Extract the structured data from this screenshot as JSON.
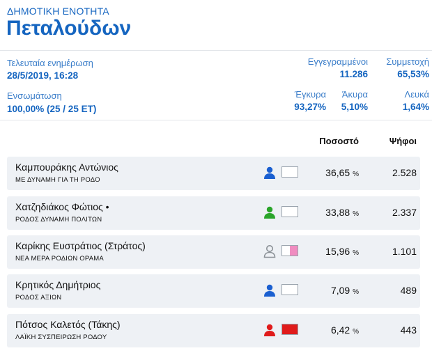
{
  "header": {
    "supertitle": "ΔΗΜΟΤΙΚΗ ΕΝΟΤΗΤΑ",
    "title": "Πεταλούδων"
  },
  "info": {
    "last_update_label": "Τελευταία ενημέρωση",
    "last_update_value": "28/5/2019, 16:28",
    "integration_label": "Ενσωμάτωση",
    "integration_value": "100,00% (25 / 25 ΕΤ)",
    "registered_label": "Εγγεγραμμένοι",
    "registered_value": "11.286",
    "turnout_label": "Συμμετοχή",
    "turnout_value": "65,53%",
    "valid_label": "Έγκυρα",
    "valid_value": "93,27%",
    "invalid_label": "Άκυρα",
    "invalid_value": "5,10%",
    "blank_label": "Λευκά",
    "blank_value": "1,64%"
  },
  "table": {
    "col_percent": "Ποσοστό",
    "col_votes": "Ψήφοι",
    "percent_sign": "%",
    "rows": [
      {
        "name": "Καμπουράκης Αντώνιος",
        "party": "ΜΕ ΔΥΝΑΜΗ ΓΙΑ ΤΗ ΡΟΔΟ",
        "percent": "36,65",
        "votes": "2.528",
        "icon": "person-icon",
        "person_color": "#1a5fd0",
        "box_color": "#ffffff",
        "box_fill": 0
      },
      {
        "name": "Χατζηδιάκος Φώτιος •",
        "party": "ΡΟΔΟΣ ΔΥΝΑΜΗ ΠΟΛΙΤΩΝ",
        "percent": "33,88",
        "votes": "2.337",
        "icon": "person-icon",
        "person_color": "#2aa52a",
        "box_color": "#ffffff",
        "box_fill": 0
      },
      {
        "name": "Καρίκης Ευστράτιος (Στράτος)",
        "party": "ΝΕΑ ΜΕΡΑ ΡΟΔΙΩΝ ΟΡΑΜΑ",
        "percent": "15,96",
        "votes": "1.101",
        "icon": "person-outline-icon",
        "person_color": "#8a9096",
        "box_color": "#f08cc0",
        "box_fill": 0.5
      },
      {
        "name": "Κρητικός Δημήτριος",
        "party": "ΡΟΔΟΣ ΑΞΙΩΝ",
        "percent": "7,09",
        "votes": "489",
        "icon": "person-icon",
        "person_color": "#1a5fd0",
        "box_color": "#ffffff",
        "box_fill": 0
      },
      {
        "name": "Πότσος Καλετός (Τάκης)",
        "party": "ΛΑΪΚΗ ΣΥΣΠΕΙΡΩΣΗ ΡΟΔΟΥ",
        "percent": "6,42",
        "votes": "443",
        "icon": "person-icon",
        "person_color": "#e01b1b",
        "box_color": "#e01b1b",
        "box_fill": 1
      }
    ]
  }
}
